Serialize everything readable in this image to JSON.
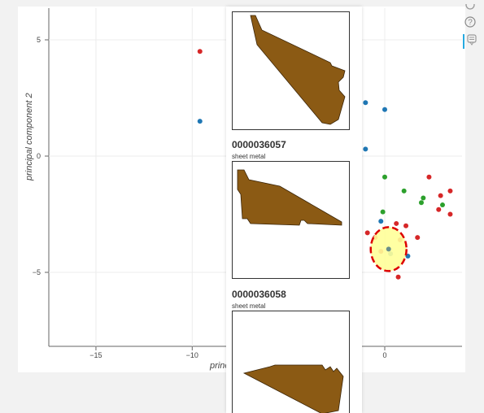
{
  "plot": {
    "ylabel": "principal component 2",
    "xlabel_visible": "princ",
    "x_ticks": [
      "−15",
      "−10",
      "0"
    ],
    "y_ticks": [
      "5",
      "0",
      "−5"
    ]
  },
  "toolbar": {
    "help_glyph": "?",
    "icons": [
      "help-icon",
      "hover-tool-icon"
    ]
  },
  "tooltip": {
    "items": [
      {
        "id": "",
        "type": ""
      },
      {
        "id": "0000036057",
        "type": "sheet metal"
      },
      {
        "id": "0000036058",
        "type": "sheet metal"
      }
    ]
  },
  "colors": {
    "red": "#d62728",
    "blue": "#1f77b4",
    "green": "#2ca02c",
    "bright_green": "#00dd00",
    "highlight": "#ffff99",
    "highlight_border": "#dd0000",
    "part_fill": "#8b5a14"
  },
  "chart_data": {
    "type": "scatter",
    "ylabel": "principal component 2",
    "xlim": [
      -17,
      4
    ],
    "ylim": [
      -8,
      6.5
    ],
    "x_ticks": [
      -15,
      -10,
      0
    ],
    "y_ticks": [
      5,
      0,
      -5
    ],
    "grid": true,
    "series": [
      {
        "color": "red",
        "points": [
          [
            -9.6,
            4.5
          ],
          [
            0.6,
            -2.9
          ],
          [
            1.1,
            -3.0
          ],
          [
            0.8,
            -3.6
          ],
          [
            1.7,
            -3.5
          ],
          [
            2.3,
            -0.9
          ],
          [
            2.9,
            -1.7
          ],
          [
            3.4,
            -1.5
          ],
          [
            2.8,
            -2.3
          ],
          [
            3.4,
            -2.5
          ],
          [
            -0.9,
            -3.3
          ],
          [
            0.7,
            -5.2
          ],
          [
            -0.2,
            -4.1
          ],
          [
            -0.5,
            -3.5
          ]
        ]
      },
      {
        "color": "blue",
        "points": [
          [
            -9.6,
            1.5
          ],
          [
            -1.0,
            2.3
          ],
          [
            0.0,
            2.0
          ],
          [
            -1.0,
            0.3
          ],
          [
            -0.2,
            -2.8
          ],
          [
            1.2,
            -4.3
          ],
          [
            0.3,
            -4.2
          ],
          [
            -1.5,
            -1.4
          ]
        ]
      },
      {
        "color": "green",
        "points": [
          [
            0.0,
            -0.9
          ],
          [
            -0.1,
            -2.4
          ],
          [
            1.0,
            -1.5
          ],
          [
            1.9,
            -2.0
          ],
          [
            2.0,
            -1.8
          ],
          [
            3.0,
            -2.1
          ]
        ]
      }
    ],
    "highlight": {
      "x": 0.2,
      "y": -4.0
    }
  }
}
